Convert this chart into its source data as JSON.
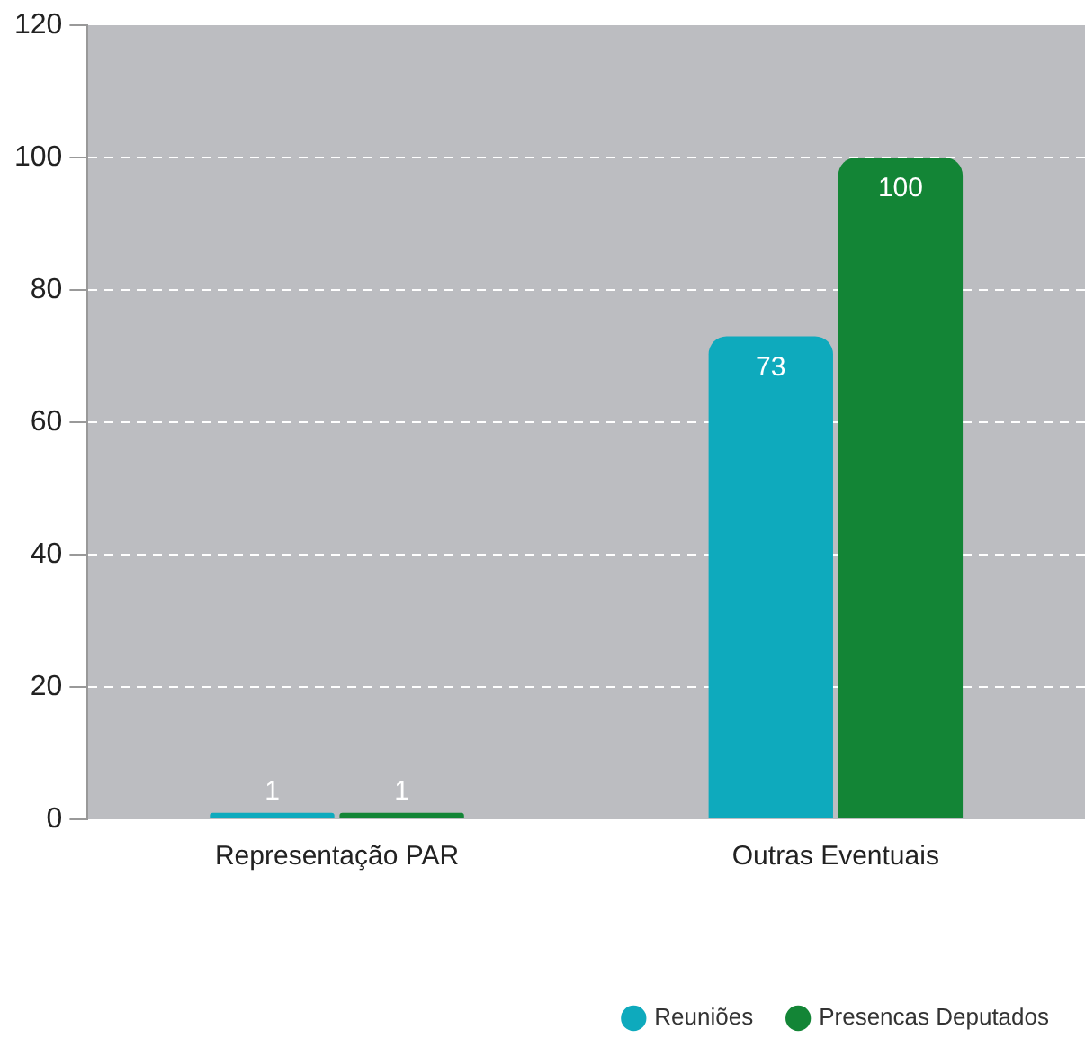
{
  "chart_data": {
    "type": "bar",
    "categories": [
      "Representação PAR",
      "Outras Eventuais"
    ],
    "series": [
      {
        "name": "Reuniões",
        "color": "#0eaabd",
        "values": [
          1,
          73
        ]
      },
      {
        "name": "Presencas Deputados",
        "color": "#138536",
        "values": [
          1,
          100
        ]
      }
    ],
    "ylim": [
      0,
      120
    ],
    "yticks": [
      0,
      20,
      40,
      60,
      80,
      100,
      120
    ],
    "grid": "y",
    "legend": "bottom right",
    "data_labels": true
  }
}
